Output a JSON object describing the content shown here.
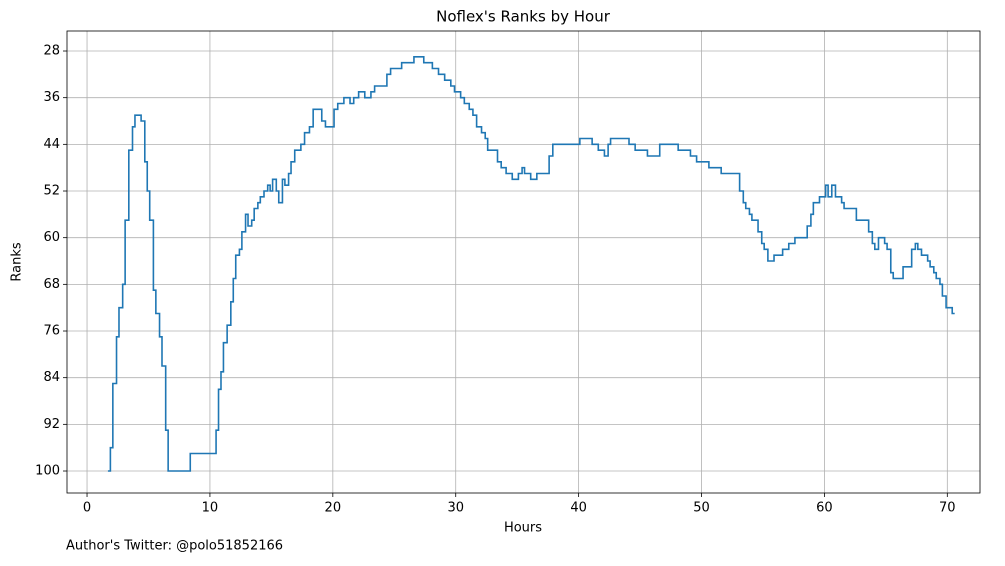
{
  "chart_data": {
    "type": "line",
    "step": "post",
    "title": "Noflex's Ranks by Hour",
    "xlabel": "Hours",
    "ylabel": "Ranks",
    "footer": "Author's Twitter: @polo51852166",
    "color": "#1f77b4",
    "grid": true,
    "x": [
      1.7,
      1.9,
      2.1,
      2.4,
      2.6,
      2.9,
      3.1,
      3.4,
      3.7,
      3.9,
      4.4,
      4.7,
      4.9,
      5.1,
      5.4,
      5.6,
      5.9,
      6.1,
      6.4,
      6.6,
      8.4,
      10.5,
      10.7,
      10.9,
      11.1,
      11.4,
      11.7,
      11.9,
      12.1,
      12.4,
      12.6,
      12.9,
      13.1,
      13.4,
      13.6,
      13.9,
      14.1,
      14.4,
      14.7,
      14.9,
      15.1,
      15.4,
      15.6,
      15.9,
      16.1,
      16.4,
      16.6,
      16.9,
      17.4,
      17.7,
      18.1,
      18.4,
      19.1,
      19.4,
      20.1,
      20.4,
      20.9,
      21.4,
      21.7,
      22.1,
      22.6,
      23.1,
      23.4,
      24.4,
      24.7,
      25.6,
      26.6,
      27.4,
      28.1,
      28.6,
      29.1,
      29.6,
      29.9,
      30.4,
      30.7,
      31.1,
      31.4,
      31.7,
      32.1,
      32.4,
      32.6,
      33.4,
      33.7,
      34.1,
      34.6,
      35.1,
      35.4,
      35.6,
      36.1,
      36.6,
      37.1,
      37.6,
      37.9,
      40.1,
      41.1,
      41.6,
      42.1,
      42.4,
      42.6,
      44.1,
      44.6,
      45.6,
      46.6,
      48.1,
      49.1,
      49.6,
      50.6,
      51.6,
      53.1,
      53.4,
      53.6,
      53.9,
      54.1,
      54.6,
      54.9,
      55.1,
      55.4,
      55.9,
      56.6,
      57.1,
      57.6,
      58.6,
      58.9,
      59.1,
      59.6,
      60.1,
      60.3,
      60.6,
      60.9,
      61.4,
      61.6,
      62.6,
      63.6,
      63.9,
      64.1,
      64.4,
      64.9,
      65.1,
      65.4,
      65.6,
      66.4,
      67.1,
      67.4,
      67.6,
      67.9,
      68.4,
      68.6,
      68.9,
      69.1,
      69.4,
      69.6,
      69.9,
      70.4,
      70.6
    ],
    "values": [
      100,
      96,
      85,
      77,
      72,
      68,
      57,
      45,
      41,
      39,
      40,
      47,
      52,
      57,
      69,
      73,
      77,
      82,
      93,
      100,
      97,
      93,
      86,
      83,
      78,
      75,
      71,
      67,
      63,
      62,
      59,
      56,
      58,
      57,
      55,
      54,
      53,
      52,
      51,
      52,
      50,
      52,
      54,
      50,
      51,
      49,
      47,
      45,
      44,
      42,
      41,
      38,
      40,
      41,
      38,
      37,
      36,
      37,
      36,
      35,
      36,
      35,
      34,
      32,
      31,
      30,
      29,
      30,
      31,
      32,
      33,
      34,
      35,
      36,
      37,
      38,
      39,
      41,
      42,
      43,
      45,
      47,
      48,
      49,
      50,
      49,
      48,
      49,
      50,
      49,
      49,
      46,
      44,
      43,
      44,
      45,
      46,
      44,
      43,
      44,
      45,
      46,
      44,
      45,
      46,
      47,
      48,
      49,
      52,
      54,
      55,
      56,
      57,
      59,
      61,
      62,
      64,
      63,
      62,
      61,
      60,
      58,
      56,
      54,
      53,
      51,
      53,
      51,
      53,
      54,
      55,
      57,
      59,
      61,
      62,
      60,
      61,
      62,
      66,
      67,
      65,
      62,
      61,
      62,
      63,
      64,
      65,
      66,
      67,
      68,
      70,
      72,
      73,
      73
    ],
    "xlim": [
      -1.63,
      72.66
    ],
    "ylim": [
      103.77,
      24.57
    ],
    "xticks": [
      0,
      10,
      20,
      30,
      40,
      50,
      60,
      70
    ],
    "yticks": [
      28,
      36,
      44,
      52,
      60,
      68,
      76,
      84,
      92,
      100
    ]
  }
}
